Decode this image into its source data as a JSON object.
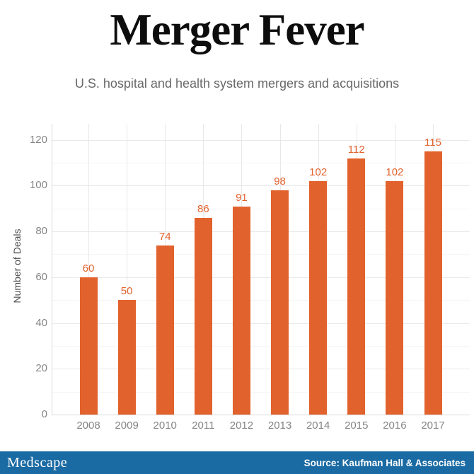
{
  "title": "Merger Fever",
  "subtitle": "U.S. hospital and health system mergers and acquisitions",
  "chart_data": {
    "type": "bar",
    "categories": [
      "2008",
      "2009",
      "2010",
      "2011",
      "2012",
      "2013",
      "2014",
      "2015",
      "2016",
      "2017"
    ],
    "values": [
      60,
      50,
      74,
      86,
      91,
      98,
      102,
      112,
      102,
      115
    ],
    "title": "Merger Fever",
    "subtitle": "U.S. hospital and health system mergers and acquisitions",
    "xlabel": "",
    "ylabel": "Number of Deals",
    "yticks": [
      0,
      20,
      40,
      60,
      80,
      100,
      120
    ],
    "ylim": [
      0,
      127
    ],
    "grid": true,
    "legend": "none",
    "bar_color": "#e2622d",
    "value_label_color": "#e2622d",
    "tick_label_color": "#858585",
    "grid_major_color": "#e8e8e8",
    "grid_minor_color": "#f5f5f5",
    "axis_line_color": "#d9d9d9"
  },
  "footer": {
    "brand": "Medscape",
    "source": "Source: Kaufman Hall & Associates",
    "background_color": "#1a6aa3",
    "text_color": "#ffffff"
  }
}
